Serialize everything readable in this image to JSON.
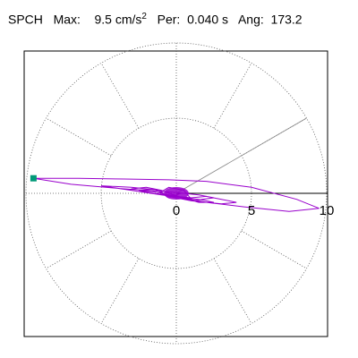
{
  "header": {
    "station": "SPCH",
    "max_label": "Max:",
    "max_value": "9.5",
    "max_unit": "cm/s",
    "max_unit_exp": "2",
    "per_label": "Per:",
    "per_value": "0.040 s",
    "ang_label": "Ang:",
    "ang_value": "173.2"
  },
  "chart_data": {
    "type": "line",
    "title": "",
    "xlabel": "",
    "ylabel": "",
    "polar_grid": true,
    "grid_rings": [
      5,
      10
    ],
    "grid_spokes_deg": 30,
    "tick_labels": [
      "0",
      "5",
      "10"
    ],
    "xlim": [
      -10,
      10
    ],
    "ylim": [
      -10,
      10
    ],
    "direction_line_deg": 30,
    "series": [
      {
        "color": "#9900cc",
        "x": [
          0.3,
          2.0,
          4.5,
          7.5,
          9.5,
          8.0,
          5.0,
          2.0,
          -0.5,
          -3.5,
          -6.5,
          -9.5,
          -7.0,
          -3.5,
          -0.5,
          1.5,
          3.0,
          4.0,
          3.0,
          1.0,
          -1.0,
          -3.0,
          -5.0,
          -3.0,
          -1.0,
          0.5,
          1.5,
          2.5,
          1.5,
          0.3,
          -1.0,
          -2.0,
          -3.0,
          -1.5,
          0.0,
          1.0,
          2.0,
          2.5,
          1.0,
          -0.5,
          -1.5,
          -2.5,
          -1.5,
          0.0,
          1.0,
          0.5,
          -0.5,
          -1.0,
          -0.5,
          0.3
        ],
        "y": [
          -0.3,
          -0.6,
          -0.9,
          -1.2,
          -1.0,
          -0.4,
          0.4,
          0.8,
          0.9,
          0.95,
          1.0,
          1.0,
          0.6,
          0.3,
          0.1,
          -0.1,
          -0.4,
          -0.6,
          -0.7,
          -0.5,
          0.2,
          0.4,
          0.5,
          0.2,
          -0.1,
          -0.3,
          -0.4,
          -0.6,
          -0.6,
          -0.3,
          0.2,
          0.4,
          0.3,
          0.1,
          -0.2,
          -0.3,
          -0.2,
          -0.3,
          -0.5,
          -0.2,
          0.3,
          0.2,
          0.0,
          -0.2,
          -0.4,
          0.2,
          0.4,
          0.1,
          -0.3,
          0.0
        ]
      }
    ],
    "marker": {
      "x": -9.5,
      "y": 1.0,
      "color": "#009977"
    }
  }
}
